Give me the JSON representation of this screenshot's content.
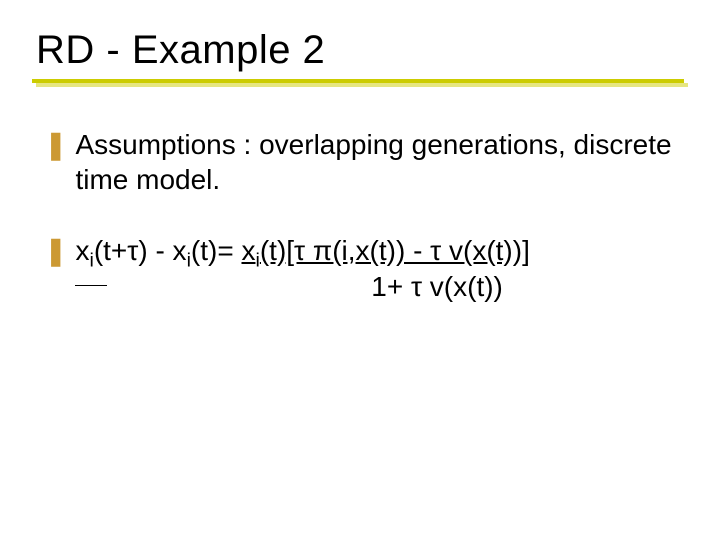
{
  "title": "RD - Example 2",
  "colors": {
    "rule_main": "#cccc00",
    "rule_shadow": "#e6e680",
    "bullet": "#cc9933",
    "text": "#000000",
    "background": "#ffffff"
  },
  "bullet_glyph": "❚",
  "item1": "Assumptions : overlapping generations, discrete time model.",
  "equation": {
    "lhs_1": "x",
    "lhs_1_sub": "i",
    "lhs_2": "(t+τ) - x",
    "lhs_2_sub": "i",
    "lhs_3": "(t)= ",
    "num_1": "x",
    "num_1_sub": "i",
    "num_2": "(t)[τ π(i,x(t)) - τ v(x(t))]",
    "den": "1+ τ v(x(t))"
  }
}
